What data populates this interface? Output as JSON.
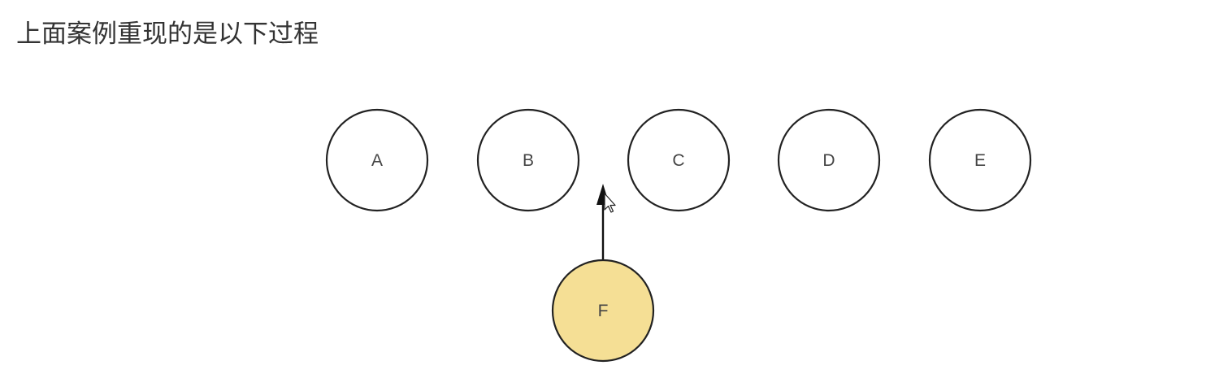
{
  "heading": "上面案例重现的是以下过程",
  "colors": {
    "node_fill": "#ffffff",
    "node_stroke": "#222222",
    "highlight_fill": "#f5df95",
    "arrow": "#111111"
  },
  "diagram": {
    "row_nodes": [
      {
        "id": "A",
        "label": "A"
      },
      {
        "id": "B",
        "label": "B"
      },
      {
        "id": "C",
        "label": "C"
      },
      {
        "id": "D",
        "label": "D"
      },
      {
        "id": "E",
        "label": "E"
      }
    ],
    "inserted_node": {
      "id": "F",
      "label": "F",
      "highlighted": true
    },
    "arrow": {
      "from": "F",
      "toward": "gap between B and C"
    },
    "cursor": "mouse-pointer-icon"
  }
}
